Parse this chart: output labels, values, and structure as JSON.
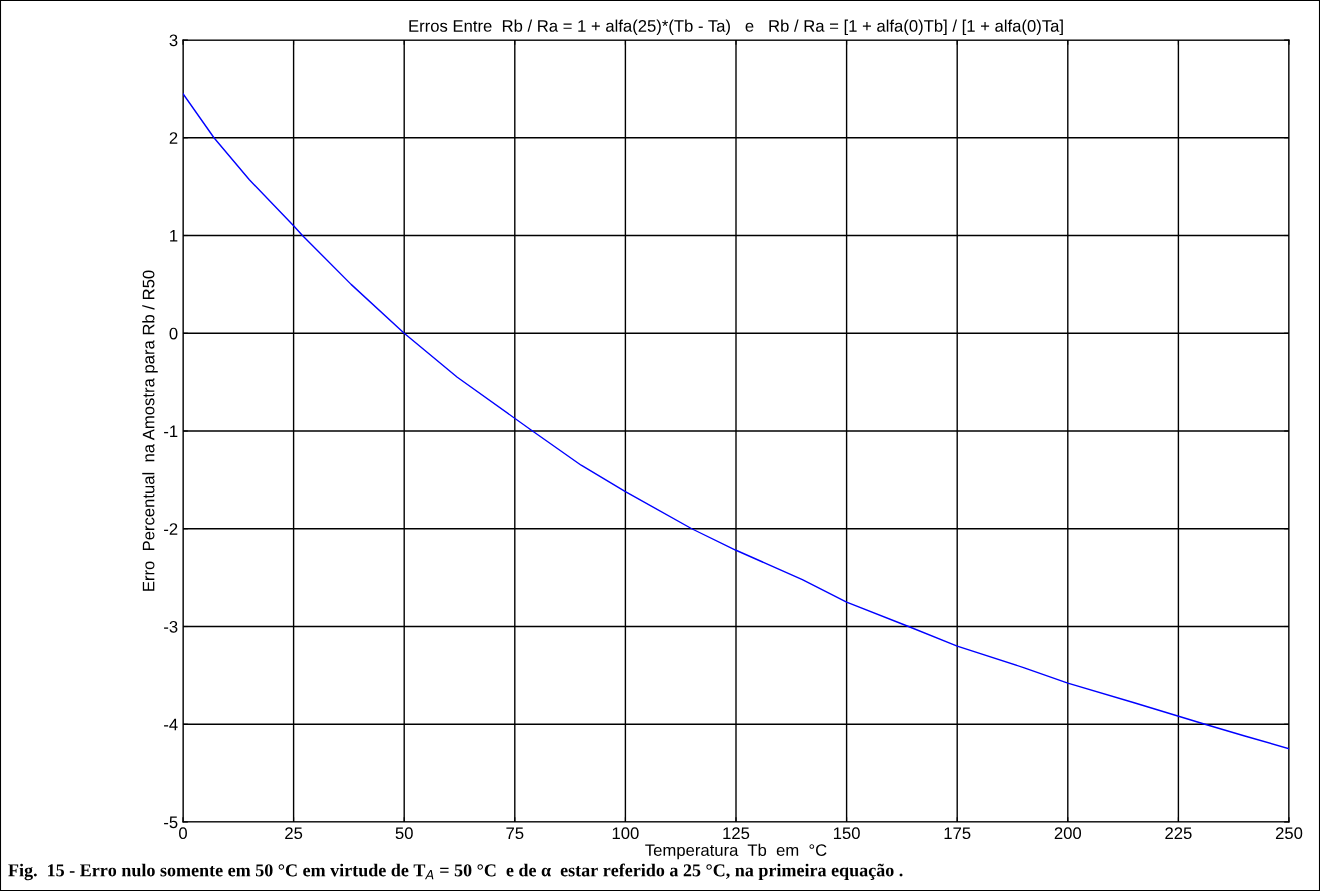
{
  "chart_data": {
    "type": "line",
    "title": "Erros Entre  Rb / Ra = 1 + alfa(25)*(Tb - Ta)   e   Rb / Ra = [1 + alfa(0)Tb] / [1 + alfa(0)Ta]",
    "xlabel": "Temperatura  Tb  em  °C",
    "ylabel": "Erro  Percentual  na Amostra para Rb / R50",
    "x": [
      0,
      7,
      15,
      25,
      27,
      38,
      50,
      62,
      79,
      90,
      100,
      115,
      125,
      140,
      150,
      164,
      175,
      190,
      200,
      215,
      231,
      240,
      250
    ],
    "series": [
      {
        "color": "#0000ff",
        "values": [
          2.45,
          2.0,
          1.57,
          1.1,
          1.0,
          0.5,
          0.0,
          -0.45,
          -1.0,
          -1.35,
          -1.62,
          -2.0,
          -2.22,
          -2.52,
          -2.75,
          -3.0,
          -3.2,
          -3.42,
          -3.58,
          -3.78,
          -4.0,
          -4.12,
          -4.25
        ]
      }
    ],
    "xlim": [
      0,
      250
    ],
    "ylim": [
      -5,
      3
    ],
    "xticks": [
      0,
      25,
      50,
      75,
      100,
      125,
      150,
      175,
      200,
      225,
      250
    ],
    "yticks": [
      -5,
      -4,
      -3,
      -2,
      -1,
      0,
      1,
      2,
      3
    ],
    "grid": true,
    "legend": false,
    "marker": "none",
    "line_style": "solid",
    "annotations": [
      "Fig.  15 - Erro nulo somente em 50 °C em virtude de T$_{A}$ = 50 °C  e de α  estar referido a 25 °C, na primeira equação ."
    ]
  }
}
